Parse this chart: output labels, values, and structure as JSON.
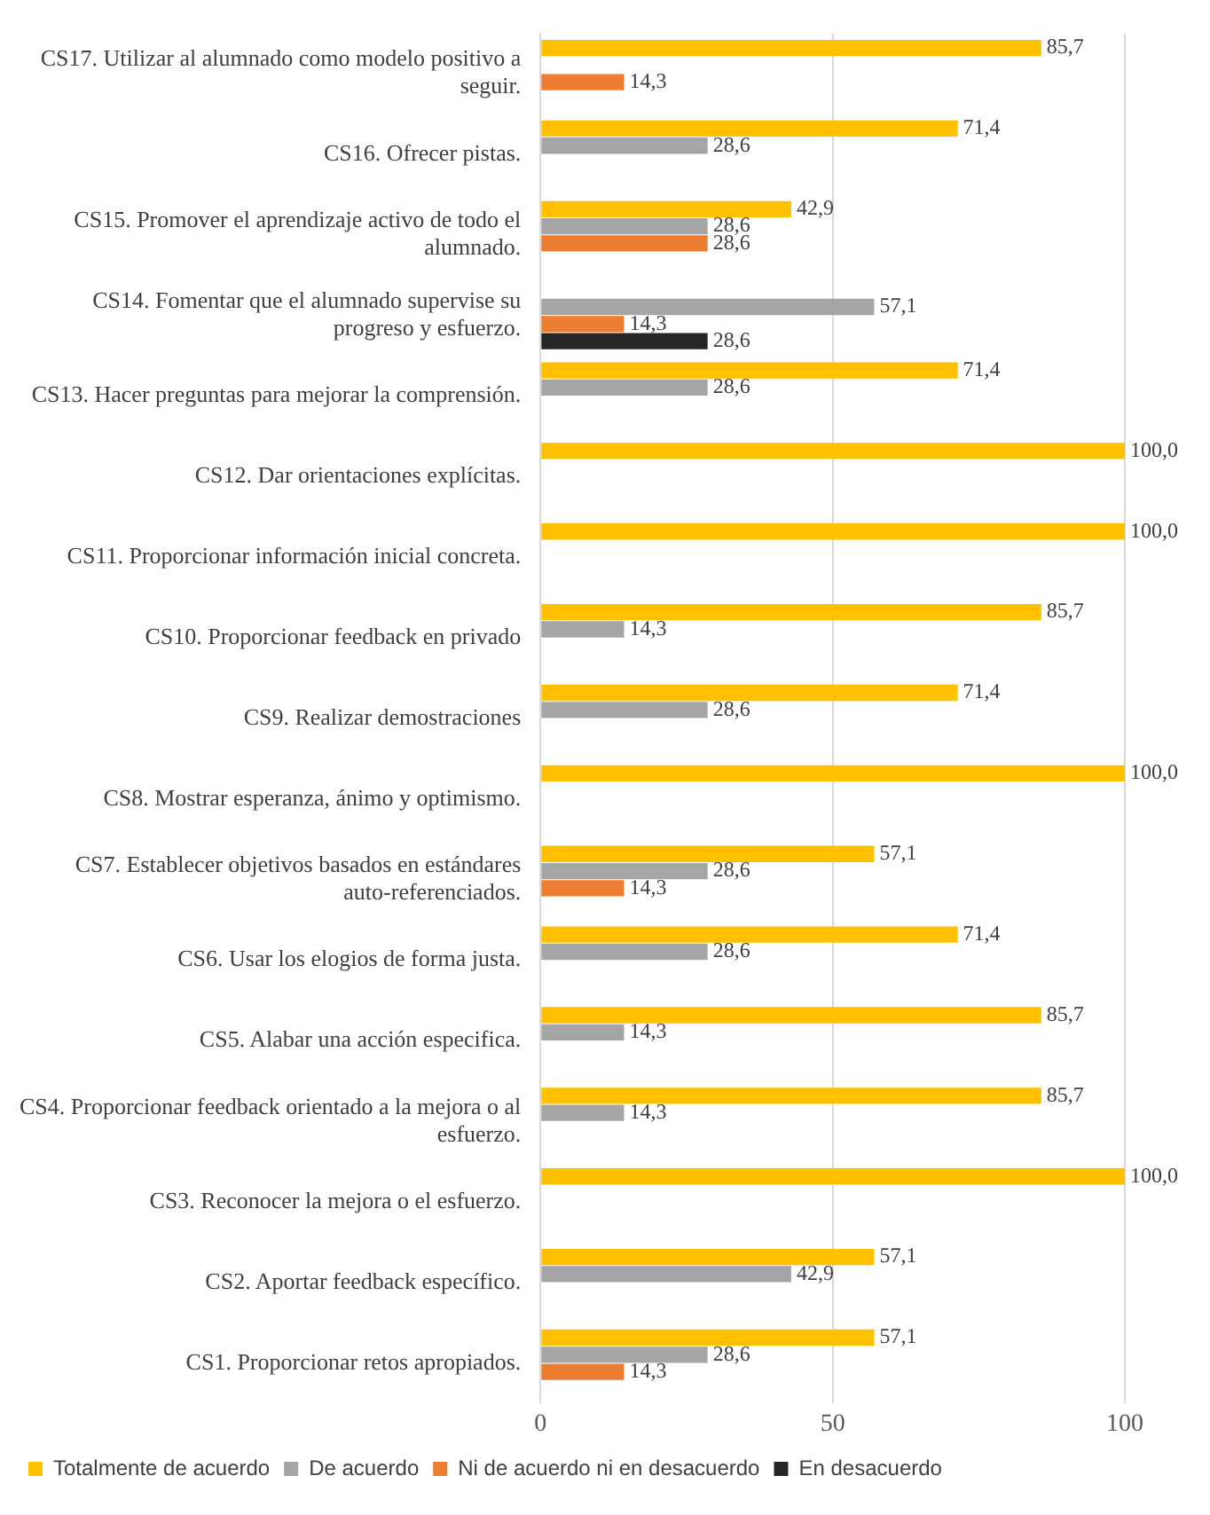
{
  "chart_data": {
    "type": "bar",
    "orientation": "horizontal",
    "categories": [
      "CS17. Utilizar al alumnado como modelo positivo a seguir.",
      "CS16. Ofrecer pistas.",
      "CS15. Promover el aprendizaje activo de todo el alumnado.",
      "CS14. Fomentar que el alumnado supervise su progreso y esfuerzo.",
      "CS13. Hacer preguntas para mejorar la comprensión.",
      "CS12. Dar orientaciones explícitas.",
      "CS11. Proporcionar información inicial concreta.",
      "CS10. Proporcionar feedback en privado",
      "CS9. Realizar demostraciones",
      "CS8. Mostrar esperanza, ánimo y optimismo.",
      "CS7. Establecer objetivos basados en estándares auto-referenciados.",
      "CS6. Usar los elogios de forma justa.",
      "CS5. Alabar una acción especifica.",
      "CS4. Proporcionar feedback orientado a la mejora o al esfuerzo.",
      "CS3. Reconocer la mejora o el esfuerzo.",
      "CS2. Aportar feedback específico.",
      "CS1. Proporcionar retos apropiados."
    ],
    "series": [
      {
        "name": "Totalmente de acuerdo",
        "color": "#ffc000",
        "values": [
          85.7,
          71.4,
          42.9,
          null,
          71.4,
          100,
          100,
          85.7,
          71.4,
          100,
          57.1,
          71.4,
          85.7,
          85.7,
          100,
          57.1,
          57.1
        ],
        "value_labels": [
          "85,7",
          "71,4",
          "42,9",
          null,
          "71,4",
          "100,0",
          "100,0",
          "85,7",
          "71,4",
          "100,0",
          "57,1",
          "71,4",
          "85,7",
          "85,7",
          "100,0",
          "57,1",
          "57,1"
        ]
      },
      {
        "name": "De acuerdo",
        "color": "#a5a5a5",
        "values": [
          null,
          28.6,
          28.6,
          57.1,
          28.6,
          null,
          null,
          14.3,
          28.6,
          null,
          28.6,
          28.6,
          14.3,
          14.3,
          null,
          42.9,
          28.6
        ],
        "value_labels": [
          null,
          "28,6",
          "28,6",
          "57,1",
          "28,6",
          null,
          null,
          "14,3",
          "28,6",
          null,
          "28,6",
          "28,6",
          "14,3",
          "14,3",
          null,
          "42,9",
          "28,6"
        ]
      },
      {
        "name": "Ni de acuerdo ni en desacuerdo",
        "color": "#ed7d31",
        "values": [
          14.3,
          null,
          28.6,
          14.3,
          null,
          null,
          null,
          null,
          null,
          null,
          14.3,
          null,
          null,
          null,
          null,
          null,
          14.3
        ],
        "value_labels": [
          "14,3",
          null,
          "28,6",
          "14,3",
          null,
          null,
          null,
          null,
          null,
          null,
          "14,3",
          null,
          null,
          null,
          null,
          null,
          "14,3"
        ]
      },
      {
        "name": "En desacuerdo",
        "color": "#262626",
        "values": [
          null,
          null,
          null,
          28.6,
          null,
          null,
          null,
          null,
          null,
          null,
          null,
          null,
          null,
          null,
          null,
          null,
          null
        ],
        "value_labels": [
          null,
          null,
          null,
          "28,6",
          null,
          null,
          null,
          null,
          null,
          null,
          null,
          null,
          null,
          null,
          null,
          null,
          null
        ]
      }
    ],
    "xlim": [
      0,
      100
    ],
    "xticks": [
      0,
      50,
      100
    ],
    "grid": "x",
    "legend": "bottom"
  }
}
